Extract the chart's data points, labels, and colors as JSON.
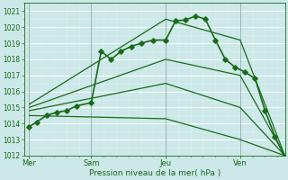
{
  "xlabel": "Pression niveau de la mer( hPa )",
  "bg_color": "#cce8e8",
  "grid_major_color": "#ffffff",
  "grid_minor_color": "#ddf0f0",
  "line_color": "#1a6b1a",
  "ylim": [
    1012,
    1021.5
  ],
  "yticks": [
    1012,
    1013,
    1014,
    1015,
    1016,
    1017,
    1018,
    1019,
    1020,
    1021
  ],
  "xlim": [
    0,
    10.5
  ],
  "day_labels": [
    "Mer",
    "Sam",
    "Jeu",
    "Ven"
  ],
  "day_positions": [
    0.2,
    2.7,
    5.7,
    8.7
  ],
  "vline_positions": [
    0.2,
    2.7,
    5.7,
    8.7
  ],
  "series_main": {
    "x": [
      0.2,
      0.5,
      0.9,
      1.3,
      1.7,
      2.1,
      2.7,
      3.1,
      3.5,
      3.9,
      4.3,
      4.7,
      5.2,
      5.7,
      6.1,
      6.5,
      6.9,
      7.3,
      7.7,
      8.1,
      8.5,
      8.9,
      9.3,
      9.7,
      10.1,
      10.5
    ],
    "y": [
      1013.8,
      1014.1,
      1014.5,
      1014.7,
      1014.8,
      1015.1,
      1015.3,
      1018.5,
      1018.0,
      1018.5,
      1018.8,
      1019.0,
      1019.2,
      1019.2,
      1020.4,
      1020.45,
      1020.7,
      1020.5,
      1019.2,
      1018.0,
      1017.5,
      1017.2,
      1016.8,
      1014.8,
      1013.2,
      1011.9
    ],
    "marker": "D",
    "markersize": 2.8,
    "linewidth": 1.2
  },
  "fan_lines": [
    {
      "x": [
        0.2,
        5.7,
        8.7,
        10.5
      ],
      "y": [
        1015.2,
        1020.5,
        1019.2,
        1012.0
      ],
      "linewidth": 0.9
    },
    {
      "x": [
        0.2,
        5.7,
        8.7,
        10.5
      ],
      "y": [
        1015.0,
        1018.0,
        1017.0,
        1012.0
      ],
      "linewidth": 0.9
    },
    {
      "x": [
        0.2,
        5.7,
        8.7,
        10.5
      ],
      "y": [
        1014.8,
        1016.5,
        1015.0,
        1012.0
      ],
      "linewidth": 0.9
    },
    {
      "x": [
        0.2,
        5.7,
        8.7,
        10.5
      ],
      "y": [
        1014.5,
        1014.3,
        1013.0,
        1012.0
      ],
      "linewidth": 0.9
    }
  ]
}
